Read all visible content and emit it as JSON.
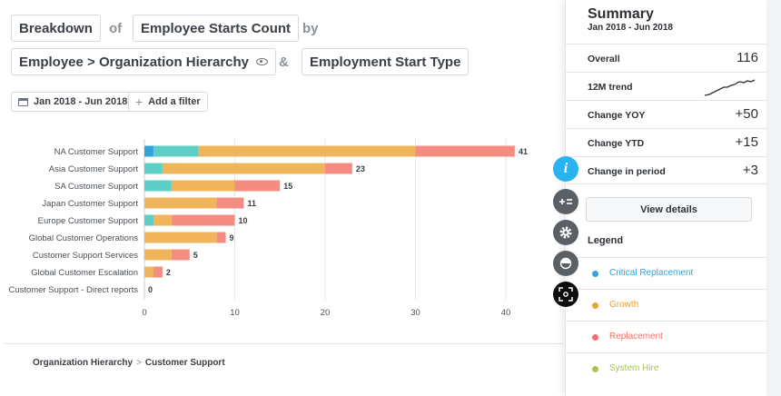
{
  "query": {
    "breakdown_label": "Breakdown",
    "of_label": "of",
    "metric": "Employee Starts Count",
    "by_label": "by",
    "dimension1": "Employee > Organization Hierarchy",
    "and_label": "&",
    "dimension2": "Employment Start Type"
  },
  "filters": {
    "date_range": "Jan 2018 - Jun 2018",
    "add_filter": "Add a filter"
  },
  "chart_data": {
    "type": "bar",
    "orientation": "horizontal",
    "stacked": true,
    "categories": [
      "NA Customer Support",
      "Asia Customer Support",
      "SA Customer Support",
      "Japan Customer Support",
      "Europe Customer Support",
      "Global Customer Operations",
      "Customer Support Services",
      "Global Customer Escalation",
      "Customer Support - Direct reports"
    ],
    "series": [
      {
        "color": "#33a3dc",
        "values": [
          1,
          0,
          0,
          0,
          0,
          0,
          0,
          0,
          0
        ]
      },
      {
        "color": "#5dcfc6",
        "values": [
          5,
          2,
          3,
          0,
          1,
          0,
          0,
          0,
          0
        ]
      },
      {
        "color": "#f0b45a",
        "values": [
          24,
          18,
          7,
          8,
          2,
          8,
          3,
          1,
          0
        ]
      },
      {
        "color": "#f58c82",
        "values": [
          11,
          3,
          5,
          3,
          7,
          1,
          2,
          1,
          0
        ]
      }
    ],
    "totals": [
      "41",
      "23",
      "15",
      "11",
      "10",
      "9",
      "5",
      "2",
      "0"
    ],
    "x_ticks": [
      "0",
      "10",
      "20",
      "30",
      "40"
    ],
    "xlim": [
      0,
      41
    ],
    "grid": true
  },
  "breadcrumb": {
    "root": "Organization Hierarchy",
    "sep": ">",
    "current": "Customer Support"
  },
  "summary": {
    "title": "Summary",
    "period": "Jan 2018 - Jun 2018",
    "metrics": [
      {
        "label": "Overall",
        "value": "116"
      },
      {
        "label": "12M trend",
        "value": ""
      },
      {
        "label": "Change YOY",
        "value": "+50"
      },
      {
        "label": "Change YTD",
        "value": "+15"
      },
      {
        "label": "Change in period",
        "value": "+3"
      }
    ],
    "view_details": "View details",
    "legend_title": "Legend",
    "legend": [
      {
        "label": "Critical Replacement",
        "color": "#33a3dc"
      },
      {
        "label": "Growth",
        "color": "#e9a23b"
      },
      {
        "label": "Replacement",
        "color": "#f07268"
      },
      {
        "label": "System Hire",
        "color": "#a8c64b"
      }
    ]
  },
  "fab": {
    "info_icon": "info-icon",
    "info_color": "#29b3f0",
    "info_glyph": "i"
  }
}
